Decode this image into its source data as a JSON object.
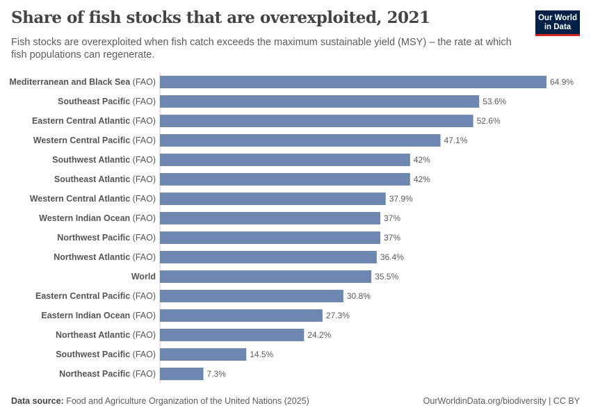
{
  "title": "Share of fish stocks that are overexploited, 2021",
  "subtitle": "Fish stocks are overexploited when fish catch exceeds the maximum sustainable yield (MSY) – the rate at which fish populations can regenerate.",
  "logo": {
    "line1": "Our World",
    "line2": "in Data"
  },
  "footer": {
    "source_label": "Data source:",
    "source": "Food and Agriculture Organization of the United Nations (2025)",
    "link": "OurWorldinData.org/biodiversity | CC BY"
  },
  "chart_data": {
    "type": "bar",
    "orientation": "horizontal",
    "bar_color": "#6d87b0",
    "unit": "%",
    "categories": [
      {
        "name": "Mediterranean and Black Sea",
        "suffix": "(FAO)"
      },
      {
        "name": "Southeast Pacific",
        "suffix": "(FAO)"
      },
      {
        "name": "Eastern Central Atlantic",
        "suffix": "(FAO)"
      },
      {
        "name": "Western Central Pacific",
        "suffix": "(FAO)"
      },
      {
        "name": "Southwest Atlantic",
        "suffix": "(FAO)"
      },
      {
        "name": "Southeast Atlantic",
        "suffix": "(FAO)"
      },
      {
        "name": "Western Central Atlantic",
        "suffix": "(FAO)"
      },
      {
        "name": "Western Indian Ocean",
        "suffix": "(FAO)"
      },
      {
        "name": "Northwest Pacific",
        "suffix": "(FAO)"
      },
      {
        "name": "Northwest Atlantic",
        "suffix": "(FAO)"
      },
      {
        "name": "World",
        "suffix": ""
      },
      {
        "name": "Eastern Central Pacific",
        "suffix": "(FAO)"
      },
      {
        "name": "Eastern Indian Ocean",
        "suffix": "(FAO)"
      },
      {
        "name": "Northeast Atlantic",
        "suffix": "(FAO)"
      },
      {
        "name": "Southwest Pacific",
        "suffix": "(FAO)"
      },
      {
        "name": "Northeast Pacific",
        "suffix": "(FAO)"
      }
    ],
    "values": [
      64.9,
      53.6,
      52.6,
      47.1,
      42,
      42,
      37.9,
      37,
      37,
      36.4,
      35.5,
      30.8,
      27.3,
      24.2,
      14.5,
      7.3
    ],
    "value_labels": [
      "64.9%",
      "53.6%",
      "52.6%",
      "47.1%",
      "42%",
      "42%",
      "37.9%",
      "37%",
      "37%",
      "36.4%",
      "35.5%",
      "30.8%",
      "27.3%",
      "24.2%",
      "14.5%",
      "7.3%"
    ]
  }
}
